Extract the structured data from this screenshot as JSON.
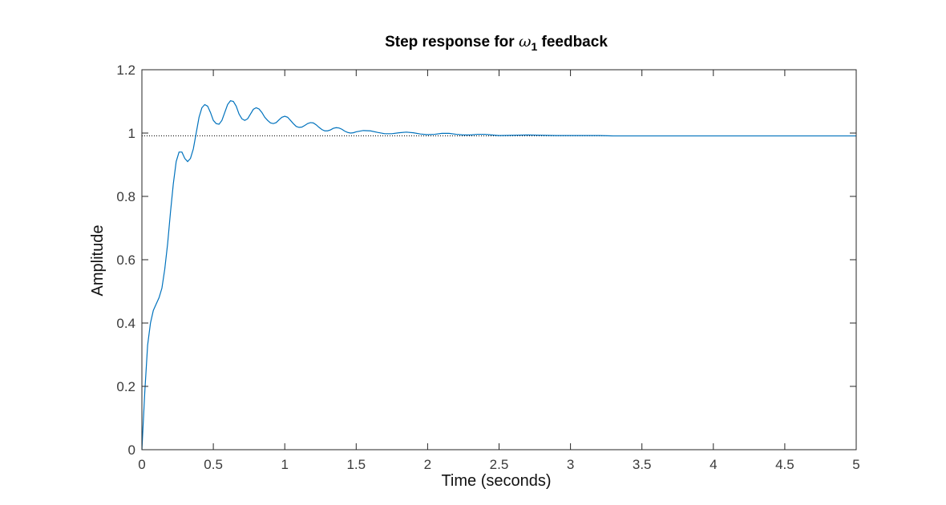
{
  "chart_data": {
    "type": "line",
    "title_prefix": "Step response for ",
    "title_symbol": "ω",
    "title_subscript": "1",
    "title_suffix": " feedback",
    "xlabel": "Time (seconds)",
    "ylabel": "Amplitude",
    "xlim": [
      0,
      5
    ],
    "ylim": [
      0,
      1.2
    ],
    "x_ticks": [
      0,
      0.5,
      1,
      1.5,
      2,
      2.5,
      3,
      3.5,
      4,
      4.5,
      5
    ],
    "x_tick_labels": [
      "0",
      "0.5",
      "1",
      "1.5",
      "2",
      "2.5",
      "3",
      "3.5",
      "4",
      "4.5",
      "5"
    ],
    "y_ticks": [
      0,
      0.2,
      0.4,
      0.6,
      0.8,
      1,
      1.2
    ],
    "y_tick_labels": [
      "0",
      "0.2",
      "0.4",
      "0.6",
      "0.8",
      "1",
      "1.2"
    ],
    "grid": false,
    "series": [
      {
        "color": "#0072bd",
        "x": [
          0,
          0.02,
          0.04,
          0.06,
          0.08,
          0.1,
          0.12,
          0.14,
          0.16,
          0.18,
          0.2,
          0.22,
          0.24,
          0.26,
          0.28,
          0.3,
          0.32,
          0.34,
          0.36,
          0.38,
          0.4,
          0.42,
          0.44,
          0.46,
          0.48,
          0.5,
          0.52,
          0.54,
          0.56,
          0.58,
          0.6,
          0.62,
          0.64,
          0.66,
          0.68,
          0.7,
          0.72,
          0.74,
          0.76,
          0.78,
          0.8,
          0.82,
          0.84,
          0.86,
          0.88,
          0.9,
          0.92,
          0.94,
          0.96,
          0.98,
          1.0,
          1.02,
          1.04,
          1.06,
          1.08,
          1.1,
          1.12,
          1.14,
          1.16,
          1.18,
          1.2,
          1.22,
          1.24,
          1.26,
          1.28,
          1.3,
          1.32,
          1.34,
          1.36,
          1.38,
          1.4,
          1.42,
          1.44,
          1.46,
          1.48,
          1.5,
          1.55,
          1.6,
          1.65,
          1.7,
          1.75,
          1.8,
          1.85,
          1.9,
          1.95,
          2.0,
          2.05,
          2.1,
          2.15,
          2.2,
          2.25,
          2.3,
          2.35,
          2.4,
          2.45,
          2.5,
          2.6,
          2.7,
          2.8,
          2.9,
          3.0,
          3.1,
          3.2,
          3.3,
          3.4,
          3.5,
          3.6,
          3.7,
          3.8,
          3.9,
          4.0,
          4.2,
          4.4,
          4.6,
          4.8,
          5.0
        ],
        "y": [
          0,
          0.18,
          0.33,
          0.4,
          0.44,
          0.46,
          0.48,
          0.51,
          0.57,
          0.65,
          0.75,
          0.84,
          0.91,
          0.94,
          0.94,
          0.92,
          0.91,
          0.92,
          0.95,
          1.0,
          1.05,
          1.08,
          1.09,
          1.085,
          1.065,
          1.04,
          1.03,
          1.028,
          1.04,
          1.065,
          1.09,
          1.102,
          1.1,
          1.085,
          1.06,
          1.045,
          1.04,
          1.045,
          1.06,
          1.075,
          1.08,
          1.076,
          1.065,
          1.05,
          1.04,
          1.032,
          1.03,
          1.033,
          1.042,
          1.05,
          1.053,
          1.05,
          1.04,
          1.03,
          1.021,
          1.018,
          1.019,
          1.024,
          1.03,
          1.033,
          1.032,
          1.026,
          1.018,
          1.011,
          1.007,
          1.007,
          1.01,
          1.015,
          1.017,
          1.016,
          1.012,
          1.006,
          1.002,
          1.0,
          1.001,
          1.004,
          1.008,
          1.007,
          1.002,
          0.998,
          0.998,
          1.001,
          1.003,
          1.001,
          0.997,
          0.995,
          0.996,
          0.999,
          0.999,
          0.996,
          0.994,
          0.994,
          0.996,
          0.996,
          0.994,
          0.992,
          0.993,
          0.994,
          0.993,
          0.992,
          0.992,
          0.992,
          0.992,
          0.991,
          0.991,
          0.991,
          0.991,
          0.991,
          0.991,
          0.991,
          0.991,
          0.991,
          0.991,
          0.991,
          0.991,
          0.991
        ]
      }
    ],
    "reference_line": {
      "y": 0.991,
      "style": "dotted",
      "color": "#000000"
    }
  }
}
